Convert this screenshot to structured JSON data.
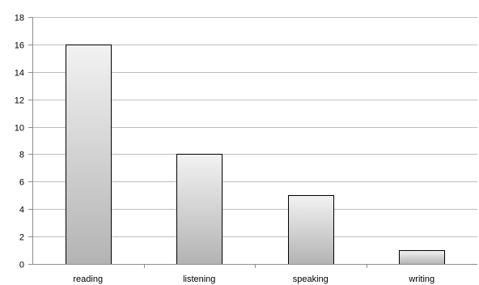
{
  "chart_data": {
    "type": "bar",
    "categories": [
      "reading",
      "listening",
      "speaking",
      "writing"
    ],
    "values": [
      16,
      8,
      5,
      1
    ],
    "ylim": [
      0,
      18
    ],
    "yticks": [
      0,
      2,
      4,
      6,
      8,
      10,
      12,
      14,
      16,
      18
    ],
    "grid": true,
    "legend": "none",
    "title": "",
    "xlabel": "",
    "ylabel": "",
    "bar_gradient": [
      "#f2f2f2",
      "#b3b3b3"
    ]
  }
}
